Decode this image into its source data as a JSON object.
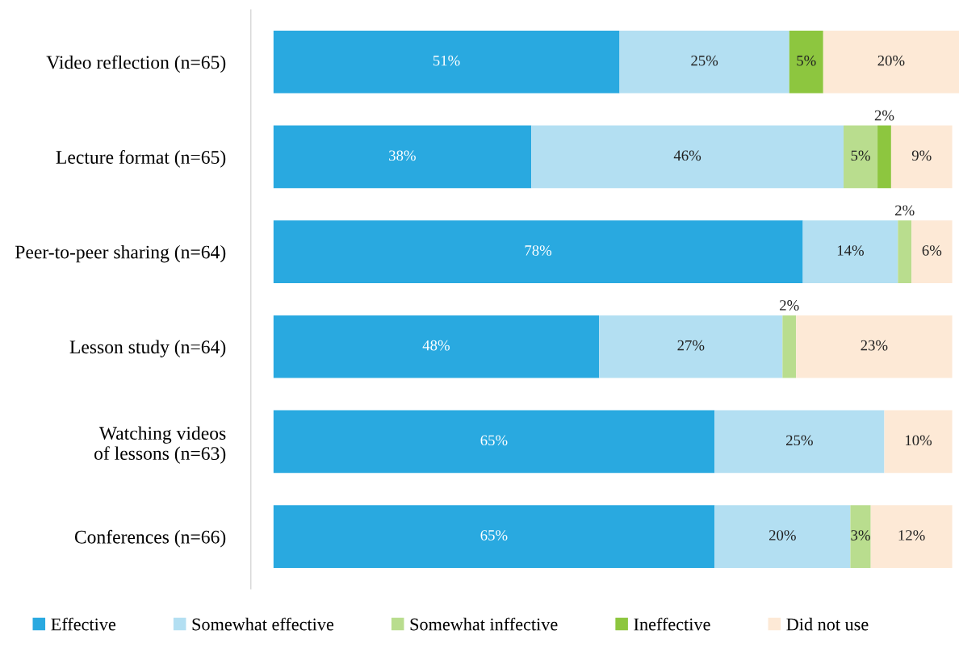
{
  "chart_data": {
    "type": "bar",
    "orientation": "horizontal",
    "stacked": true,
    "categories": [
      "Video reflection (n=65)",
      "Lecture format (n=65)",
      "Peer-to-peer sharing (n=64)",
      "Lesson study (n=64)",
      "Watching videos\nof lessons (n=63)",
      "Conferences (n=66)"
    ],
    "xlim": [
      0,
      101
    ],
    "grid": false,
    "legend": "bottom",
    "series": [
      {
        "name": "Effective",
        "color": "#29a9e0",
        "values": [
          51,
          38,
          78,
          48,
          65,
          65
        ],
        "value_labels": [
          "51%",
          "38%",
          "78%",
          "48%",
          "65%",
          "65%"
        ]
      },
      {
        "name": "Somewhat effective",
        "color": "#b3dff2",
        "values": [
          25,
          46,
          14,
          27,
          25,
          20
        ],
        "value_labels": [
          "25%",
          "46%",
          "14%",
          "27%",
          "25%",
          "20%"
        ]
      },
      {
        "name": "Somewhat inffective",
        "color": "#b9dd8e",
        "values": [
          null,
          5,
          2,
          2,
          null,
          3
        ],
        "value_labels": [
          null,
          "5%",
          "2%",
          "2%",
          null,
          "3%"
        ]
      },
      {
        "name": "Ineffective",
        "color": "#8dc63f",
        "values": [
          5,
          2,
          null,
          null,
          null,
          null
        ],
        "value_labels": [
          "5%",
          "2%",
          null,
          null,
          null,
          null
        ]
      },
      {
        "name": "Did not use",
        "color": "#fde9d6",
        "values": [
          20,
          9,
          6,
          23,
          10,
          12
        ],
        "value_labels": [
          "20%",
          "9%",
          "6%",
          "23%",
          "10%",
          "12%"
        ]
      }
    ]
  }
}
